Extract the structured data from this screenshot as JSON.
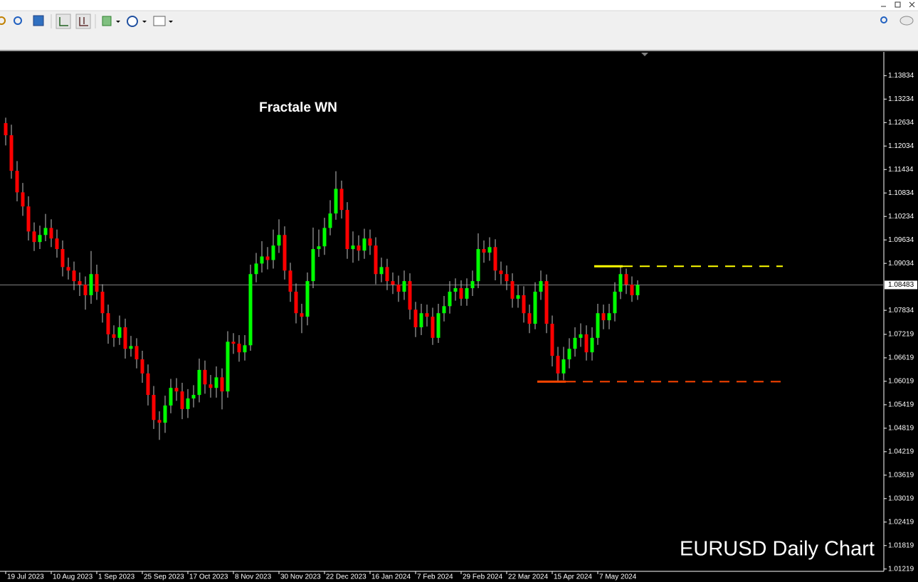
{
  "chart_data": {
    "type": "candlestick",
    "title": "Fractale WN",
    "subtitle": "EURUSD Daily Chart",
    "up_color": "#00ff00",
    "down_color": "#ff0000",
    "wick_color": "#c0c0c0",
    "categories": [
      "19 Jul 2023",
      null,
      null,
      null,
      null,
      null,
      null,
      null,
      "10 Aug 2023",
      null,
      null,
      null,
      null,
      null,
      null,
      null,
      "1 Sep 2023",
      null,
      null,
      null,
      null,
      null,
      null,
      null,
      "25 Sep 2023",
      null,
      null,
      null,
      null,
      null,
      null,
      null,
      "17 Oct 2023",
      null,
      null,
      null,
      null,
      null,
      null,
      null,
      "8 Nov 2023",
      null,
      null,
      null,
      null,
      null,
      null,
      null,
      "30 Nov 2023",
      null,
      null,
      null,
      null,
      null,
      null,
      null,
      "22 Dec 2023",
      null,
      null,
      null,
      null,
      null,
      null,
      null,
      "16 Jan 2024",
      null,
      null,
      null,
      null,
      null,
      null,
      null,
      "7 Feb 2024",
      null,
      null,
      null,
      null,
      null,
      null,
      null,
      "29 Feb 2024",
      null,
      null,
      null,
      null,
      null,
      null,
      null,
      "22 Mar 2024",
      null,
      null,
      null,
      null,
      null,
      null,
      null,
      "15 Apr 2024",
      null,
      null,
      null,
      null,
      null,
      null,
      null,
      "7 May 2024",
      null,
      null,
      null,
      null,
      null,
      null,
      null
    ],
    "open": [
      1.1262,
      1.1231,
      1.114,
      1.1085,
      1.1049,
      1.0985,
      1.0958,
      1.0976,
      1.0994,
      1.0967,
      1.094,
      1.0894,
      1.0885,
      1.0858,
      1.0849,
      1.0822,
      1.0876,
      1.0831,
      1.0776,
      1.0722,
      1.0713,
      1.074,
      1.0685,
      1.0692,
      1.0658,
      1.0622,
      1.0567,
      1.0503,
      1.0496,
      1.054,
      1.0585,
      1.0576,
      1.0531,
      1.0558,
      1.0567,
      1.0631,
      1.0594,
      1.0585,
      1.0612,
      1.0576,
      1.0703,
      1.0698,
      1.0676,
      1.0694,
      1.0876,
      1.0903,
      1.0921,
      1.0912,
      1.0949,
      1.0976,
      1.0885,
      1.0831,
      1.0776,
      1.0767,
      1.0858,
      1.094,
      1.0947,
      1.0994,
      1.1031,
      1.1094,
      1.104,
      1.094,
      1.0949,
      1.0936,
      1.0967,
      1.0949,
      1.0876,
      1.0894,
      1.0858,
      1.0849,
      1.0831,
      1.0858,
      1.0785,
      1.074,
      1.0776,
      1.0767,
      1.0713,
      1.0776,
      1.0794,
      1.0831,
      1.084,
      1.0813,
      1.084,
      1.0858,
      1.094,
      1.0931,
      1.0945,
      1.0885,
      1.0876,
      1.0858,
      1.0813,
      1.0822,
      1.0776,
      1.0749,
      1.0831,
      1.0858,
      1.0749,
      1.0667,
      1.0622,
      1.0658,
      1.0685,
      1.0713,
      1.0722,
      1.0676,
      1.0713,
      1.0776,
      1.0758,
      1.0776,
      1.0831,
      1.0876,
      1.0849,
      1.0822
    ],
    "high": [
      1.1276,
      1.1258,
      1.1165,
      1.1109,
      1.1075,
      1.1008,
      1.1,
      1.103,
      1.1016,
      1.099,
      1.0962,
      1.0918,
      1.0908,
      1.088,
      1.087,
      1.0935,
      1.09,
      1.085,
      1.0798,
      1.0745,
      1.077,
      1.0762,
      1.0718,
      1.0712,
      1.068,
      1.0645,
      1.059,
      1.0525,
      1.0565,
      1.0608,
      1.061,
      1.0598,
      1.0582,
      1.0592,
      1.066,
      1.0655,
      1.0618,
      1.064,
      1.0635,
      1.073,
      1.0725,
      1.072,
      1.072,
      1.09,
      1.093,
      1.096,
      1.0945,
      1.099,
      1.1016,
      1.0998,
      1.0905,
      1.0852,
      1.08,
      1.088,
      1.0995,
      1.099,
      1.102,
      1.1065,
      1.1139,
      1.1115,
      1.106,
      1.0985,
      1.0975,
      1.0992,
      1.099,
      1.097,
      1.0918,
      1.0915,
      1.088,
      1.0872,
      1.0885,
      1.0878,
      1.0805,
      1.08,
      1.0798,
      1.079,
      1.08,
      1.082,
      1.0858,
      1.0865,
      1.086,
      1.0865,
      1.0885,
      1.098,
      1.0962,
      1.097,
      1.0965,
      1.0908,
      1.0898,
      1.0878,
      1.0848,
      1.0845,
      1.0798,
      1.0855,
      1.0885,
      1.0875,
      1.077,
      1.069,
      1.069,
      1.0712,
      1.074,
      1.075,
      1.0745,
      1.074,
      1.08,
      1.0798,
      1.08,
      1.0855,
      1.0896,
      1.089,
      1.087,
      1.086
    ],
    "low": [
      1.1205,
      1.112,
      1.1062,
      1.1025,
      1.0962,
      1.0935,
      1.094,
      1.096,
      1.0945,
      1.0918,
      1.087,
      1.0862,
      1.0835,
      1.082,
      1.0785,
      1.08,
      1.081,
      1.0752,
      1.0698,
      1.069,
      1.0695,
      1.066,
      1.0665,
      1.0635,
      1.0598,
      1.054,
      1.048,
      1.0452,
      1.047,
      1.052,
      1.0552,
      1.0505,
      1.0508,
      1.0535,
      1.0548,
      1.057,
      1.056,
      1.056,
      1.053,
      1.056,
      1.0672,
      1.0652,
      1.0655,
      1.068,
      1.0855,
      1.088,
      1.0888,
      1.089,
      1.093,
      1.0862,
      1.0805,
      1.075,
      1.0725,
      1.0745,
      1.084,
      1.092,
      1.0925,
      1.0975,
      1.1015,
      1.1018,
      1.0915,
      1.0905,
      1.091,
      1.0915,
      1.0925,
      1.085,
      1.0855,
      1.0835,
      1.0825,
      1.0805,
      1.081,
      1.076,
      1.0715,
      1.072,
      1.0742,
      1.0695,
      1.07,
      1.0755,
      1.0775,
      1.0808,
      1.0795,
      1.0795,
      1.082,
      1.084,
      1.0905,
      1.091,
      1.086,
      1.085,
      1.0835,
      1.079,
      1.079,
      1.0752,
      1.0725,
      1.0735,
      1.081,
      1.0725,
      1.064,
      1.0601,
      1.0605,
      1.0635,
      1.0665,
      1.069,
      1.0655,
      1.0655,
      1.0695,
      1.0735,
      1.0735,
      1.0755,
      1.0812,
      1.0825,
      1.0805,
      1.081
    ],
    "close": [
      1.1231,
      1.114,
      1.1085,
      1.1049,
      1.0985,
      1.0958,
      1.0976,
      1.0994,
      1.0967,
      1.094,
      1.0894,
      1.0885,
      1.0858,
      1.0849,
      1.0822,
      1.0876,
      1.0831,
      1.0776,
      1.0722,
      1.0713,
      1.074,
      1.0685,
      1.0692,
      1.0658,
      1.0622,
      1.0567,
      1.0503,
      1.0496,
      1.054,
      1.0585,
      1.0576,
      1.0531,
      1.0558,
      1.0567,
      1.0631,
      1.0594,
      1.0585,
      1.0612,
      1.0576,
      1.0703,
      1.0698,
      1.0676,
      1.0694,
      1.0876,
      1.0903,
      1.0921,
      1.0912,
      1.0949,
      1.0976,
      1.0885,
      1.0831,
      1.0776,
      1.0767,
      1.0858,
      1.094,
      1.0947,
      1.0994,
      1.1031,
      1.1094,
      1.104,
      1.094,
      1.0949,
      1.0936,
      1.0967,
      1.0949,
      1.0876,
      1.0894,
      1.0858,
      1.0849,
      1.0831,
      1.0858,
      1.0785,
      1.074,
      1.0776,
      1.0767,
      1.0713,
      1.0776,
      1.0794,
      1.0831,
      1.084,
      1.0813,
      1.084,
      1.0858,
      1.094,
      1.0931,
      1.0945,
      1.0885,
      1.0876,
      1.0858,
      1.0813,
      1.0822,
      1.0776,
      1.0749,
      1.0831,
      1.0858,
      1.0749,
      1.0667,
      1.0622,
      1.0658,
      1.0685,
      1.0713,
      1.0722,
      1.0676,
      1.0713,
      1.0776,
      1.0758,
      1.0776,
      1.0831,
      1.0876,
      1.0849,
      1.0822,
      1.08483
    ],
    "levels": [
      {
        "value": 1.0896,
        "color": "#ffff00"
      },
      {
        "value": 1.0601,
        "color": "#ff4500"
      }
    ],
    "current_price": 1.08483,
    "ylim": [
      1.0116,
      1.1444
    ],
    "yticks": [
      1.13834,
      1.13234,
      1.12634,
      1.12034,
      1.11434,
      1.10834,
      1.10234,
      1.09634,
      1.09034,
      1.07834,
      1.07219,
      1.06619,
      1.06019,
      1.05419,
      1.04819,
      1.04219,
      1.03619,
      1.03019,
      1.02419,
      1.01819,
      1.01219
    ]
  }
}
